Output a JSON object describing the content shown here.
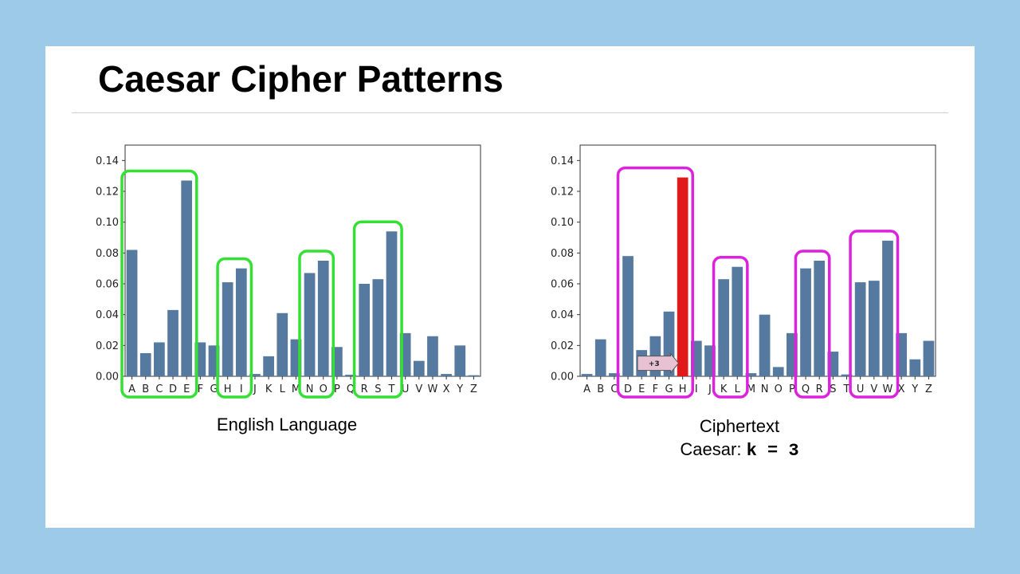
{
  "slide": {
    "title": "Caesar Cipher Patterns",
    "left_caption": "English Language",
    "right_caption_line1": "Ciphertext",
    "right_caption_prefix": "Caesar: ",
    "right_caption_key": "k = 3"
  },
  "colors": {
    "bar": "#55799f",
    "highlight_bar": "#e0191b",
    "left_box": "#33e033",
    "right_box": "#dd22dd",
    "arrow_fill": "#e8c2d2",
    "background": "#9dcae8"
  },
  "chart_data": [
    {
      "type": "bar",
      "categories": [
        "A",
        "B",
        "C",
        "D",
        "E",
        "F",
        "G",
        "H",
        "I",
        "J",
        "K",
        "L",
        "M",
        "N",
        "O",
        "P",
        "Q",
        "R",
        "S",
        "T",
        "U",
        "V",
        "W",
        "X",
        "Y",
        "Z"
      ],
      "values": [
        0.082,
        0.015,
        0.022,
        0.043,
        0.127,
        0.022,
        0.02,
        0.061,
        0.07,
        0.0015,
        0.013,
        0.041,
        0.024,
        0.067,
        0.075,
        0.019,
        0.001,
        0.06,
        0.063,
        0.094,
        0.028,
        0.01,
        0.026,
        0.0015,
        0.02,
        0.0007
      ],
      "ylim": [
        0,
        0.15
      ],
      "yticks": [
        "0.00",
        "0.02",
        "0.04",
        "0.06",
        "0.08",
        "0.10",
        "0.12",
        "0.14"
      ],
      "groups": [
        [
          "A",
          "E"
        ],
        [
          "H",
          "I"
        ],
        [
          "N",
          "O"
        ],
        [
          "R",
          "T"
        ]
      ]
    },
    {
      "type": "bar",
      "categories": [
        "A",
        "B",
        "C",
        "D",
        "E",
        "F",
        "G",
        "H",
        "I",
        "J",
        "K",
        "L",
        "M",
        "N",
        "O",
        "P",
        "Q",
        "R",
        "S",
        "T",
        "U",
        "V",
        "W",
        "X",
        "Y",
        "Z"
      ],
      "values": [
        0.0015,
        0.024,
        0.002,
        0.078,
        0.017,
        0.026,
        0.042,
        0.129,
        0.023,
        0.02,
        0.063,
        0.071,
        0.002,
        0.04,
        0.006,
        0.028,
        0.07,
        0.075,
        0.016,
        0.0012,
        0.061,
        0.062,
        0.088,
        0.028,
        0.011,
        0.023
      ],
      "ylim": [
        0,
        0.15
      ],
      "yticks": [
        "0.00",
        "0.02",
        "0.04",
        "0.06",
        "0.08",
        "0.10",
        "0.12",
        "0.14"
      ],
      "highlight": "H",
      "groups": [
        [
          "D",
          "H"
        ],
        [
          "K",
          "L"
        ],
        [
          "Q",
          "R"
        ],
        [
          "U",
          "W"
        ]
      ],
      "annotation": "+3"
    }
  ]
}
